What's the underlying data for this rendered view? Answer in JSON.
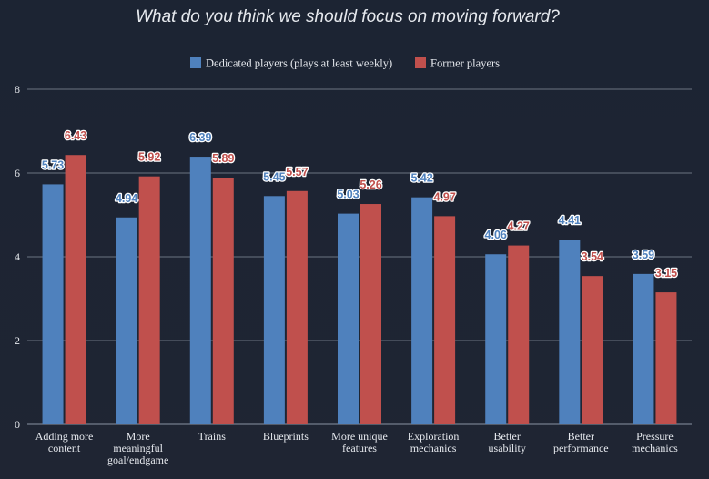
{
  "chart_data": {
    "type": "bar",
    "title": "What do you think we should focus on moving forward?",
    "categories": [
      [
        "Adding more",
        "content"
      ],
      [
        "More",
        "meaningful",
        "goal/endgame"
      ],
      [
        "Trains"
      ],
      [
        "Blueprints"
      ],
      [
        "More unique",
        "features"
      ],
      [
        "Exploration",
        "mechanics"
      ],
      [
        "Better",
        "usability"
      ],
      [
        "Better",
        "performance"
      ],
      [
        "Pressure",
        "mechanics"
      ]
    ],
    "series": [
      {
        "name": "Dedicated players (plays at least weekly)",
        "color": "#4f81bd",
        "values": [
          5.73,
          4.94,
          6.39,
          5.45,
          5.03,
          5.42,
          4.06,
          4.41,
          3.59
        ],
        "labels": [
          "5.73",
          "4.94",
          "6.39",
          "5.45",
          "5.03",
          "5.42",
          "4.06",
          "4.41",
          "3.59"
        ]
      },
      {
        "name": "Former players",
        "color": "#c0504d",
        "values": [
          6.43,
          5.92,
          5.89,
          5.57,
          5.26,
          4.97,
          4.27,
          3.54,
          3.15
        ],
        "labels": [
          "6.43",
          "5.92",
          "5.89",
          "5.57",
          "5.26",
          "4.97",
          "4.27",
          "3.54",
          "3.15"
        ]
      }
    ],
    "ylim": [
      0,
      8
    ],
    "yticks": [
      "0",
      "2",
      "4",
      "6",
      "8"
    ],
    "grid": true,
    "legend_position": "top-center",
    "xlabel": "",
    "ylabel": ""
  }
}
